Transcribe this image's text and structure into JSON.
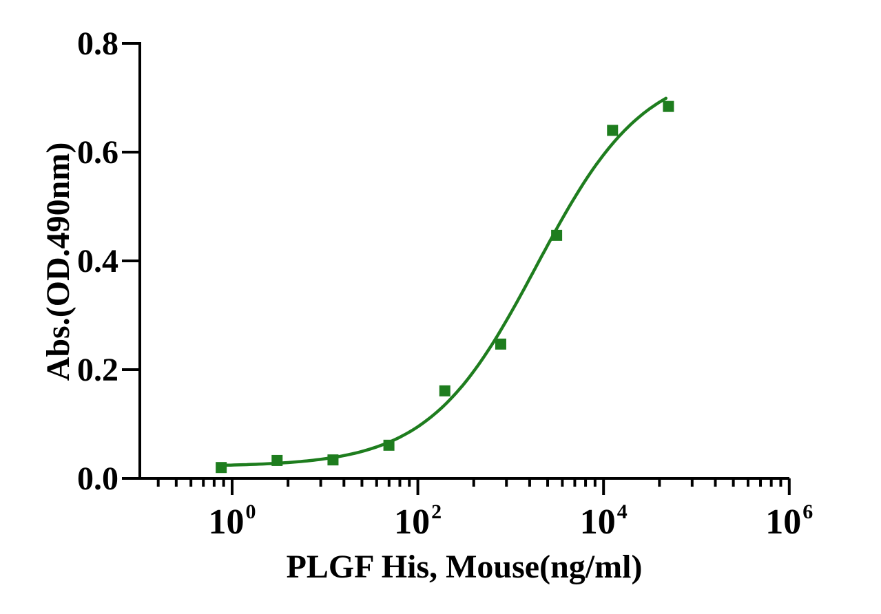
{
  "figure": {
    "background": "#ffffff",
    "axis_color": "#000000",
    "accent_green": "#1e7d1e"
  },
  "chart_data": {
    "type": "scatter",
    "title": "",
    "xlabel": "PLGF His, Mouse(ng/ml)",
    "ylabel": "Abs.(OD.490nm)",
    "x_scale": "log10",
    "xlim": [
      0.1,
      1000000
    ],
    "ylim": [
      0.0,
      0.8
    ],
    "grid": false,
    "legend": "none",
    "x_major_tick_exponents": [
      0,
      2,
      4,
      6
    ],
    "x_tick_mantissa": "10",
    "y_tick_labels": [
      "0.0",
      "0.2",
      "0.4",
      "0.6",
      "0.8"
    ],
    "y_tick_values": [
      0.0,
      0.2,
      0.4,
      0.6,
      0.8
    ],
    "series": [
      {
        "marker": "filled-square",
        "color": "#1e7d1e",
        "x": [
          0.763,
          3.05,
          12.2,
          48.8,
          195.3,
          781.25,
          3125,
          12500,
          50000
        ],
        "y": [
          0.02,
          0.033,
          0.034,
          0.061,
          0.161,
          0.247,
          0.447,
          0.64,
          0.684
        ]
      }
    ],
    "fit_curve": {
      "model": "4PL",
      "bottom": 0.022,
      "top": 0.76,
      "ec50": 1900,
      "hill": 0.75,
      "x_range": [
        0.763,
        47000
      ],
      "color": "#1e7d1e"
    }
  }
}
